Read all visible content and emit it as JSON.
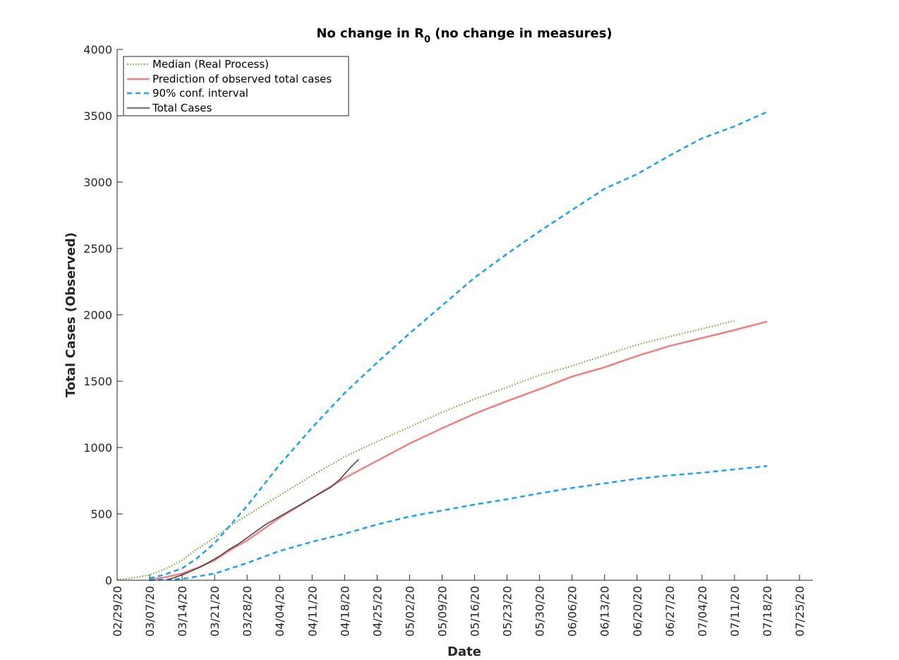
{
  "chart_data": {
    "type": "line",
    "title": "No change in R",
    "title_subscript": "0",
    "title_suffix": " (no change in measures)",
    "xlabel": "Date",
    "ylabel": "Total Cases (Observed)",
    "x_ticks": [
      "02/29/20",
      "03/07/20",
      "03/14/20",
      "03/21/20",
      "03/28/20",
      "04/04/20",
      "04/11/20",
      "04/18/20",
      "04/25/20",
      "05/02/20",
      "05/09/20",
      "05/16/20",
      "05/23/20",
      "05/30/20",
      "06/06/20",
      "06/13/20",
      "06/20/20",
      "06/27/20",
      "07/04/20",
      "07/11/20",
      "07/18/20",
      "07/25/20"
    ],
    "y_ticks": [
      0,
      500,
      1000,
      1500,
      2000,
      2500,
      3000,
      3500,
      4000
    ],
    "xlim": [
      "2020-02-29",
      "2020-07-25"
    ],
    "ylim": [
      0,
      4000
    ],
    "grid": false,
    "legend_position": "top-left",
    "series": [
      {
        "name": "Median (Real Process)",
        "color": "#77AC30",
        "style": "dotted",
        "x": [
          "2020-02-29",
          "2020-03-03",
          "2020-03-07",
          "2020-03-10",
          "2020-03-14",
          "2020-03-17",
          "2020-03-21",
          "2020-03-24",
          "2020-03-28",
          "2020-04-04",
          "2020-04-11",
          "2020-04-18",
          "2020-04-25",
          "2020-05-02",
          "2020-05-09",
          "2020-05-16",
          "2020-05-23",
          "2020-05-30",
          "2020-06-06",
          "2020-06-13",
          "2020-06-20",
          "2020-06-27",
          "2020-07-04",
          "2020-07-11"
        ],
        "y": [
          5,
          15,
          40,
          80,
          150,
          230,
          320,
          400,
          490,
          640,
          790,
          930,
          1045,
          1155,
          1265,
          1365,
          1455,
          1545,
          1615,
          1695,
          1775,
          1835,
          1895,
          1955
        ]
      },
      {
        "name": "Prediction of observed total cases",
        "color": "#F08080",
        "style": "solid",
        "x": [
          "2020-03-07",
          "2020-03-10",
          "2020-03-14",
          "2020-03-17",
          "2020-03-21",
          "2020-03-24",
          "2020-03-28",
          "2020-04-04",
          "2020-04-11",
          "2020-04-18",
          "2020-04-25",
          "2020-05-02",
          "2020-05-09",
          "2020-05-16",
          "2020-05-23",
          "2020-05-30",
          "2020-06-06",
          "2020-06-13",
          "2020-06-20",
          "2020-06-27",
          "2020-07-04",
          "2020-07-11",
          "2020-07-18"
        ],
        "y": [
          5,
          20,
          50,
          90,
          150,
          220,
          300,
          470,
          620,
          770,
          900,
          1030,
          1145,
          1255,
          1350,
          1440,
          1535,
          1605,
          1690,
          1765,
          1825,
          1885,
          1950
        ]
      },
      {
        "name": "90% conf. interval",
        "color": "#1AA3F0",
        "style": "dashed",
        "x": [
          "2020-03-07",
          "2020-03-10",
          "2020-03-14",
          "2020-03-17",
          "2020-03-21",
          "2020-03-24",
          "2020-03-28",
          "2020-04-04",
          "2020-04-11",
          "2020-04-18",
          "2020-04-25",
          "2020-05-02",
          "2020-05-09",
          "2020-05-16",
          "2020-05-23",
          "2020-05-30",
          "2020-06-06",
          "2020-06-13",
          "2020-06-20",
          "2020-06-27",
          "2020-07-04",
          "2020-07-11",
          "2020-07-18"
        ],
        "y": [
          15,
          40,
          90,
          160,
          280,
          400,
          560,
          870,
          1150,
          1410,
          1640,
          1860,
          2070,
          2280,
          2460,
          2630,
          2790,
          2950,
          3060,
          3200,
          3330,
          3420,
          3530
        ]
      },
      {
        "color": "#1AA3F0",
        "style": "dashed",
        "x": [
          "2020-03-07",
          "2020-03-14",
          "2020-03-21",
          "2020-03-28",
          "2020-04-04",
          "2020-04-11",
          "2020-04-18",
          "2020-04-25",
          "2020-05-02",
          "2020-05-09",
          "2020-05-16",
          "2020-05-23",
          "2020-05-30",
          "2020-06-06",
          "2020-06-13",
          "2020-06-20",
          "2020-06-27",
          "2020-07-04",
          "2020-07-11",
          "2020-07-18"
        ],
        "y": [
          0,
          10,
          50,
          130,
          220,
          290,
          350,
          420,
          480,
          525,
          570,
          610,
          655,
          695,
          730,
          765,
          790,
          810,
          835,
          860
        ]
      },
      {
        "name": "Total Cases",
        "color": "#404040",
        "style": "solid",
        "x": [
          "2020-03-11",
          "2020-03-14",
          "2020-03-16",
          "2020-03-18",
          "2020-03-20",
          "2020-03-22",
          "2020-03-24",
          "2020-03-26",
          "2020-03-28",
          "2020-03-30",
          "2020-04-01",
          "2020-04-03",
          "2020-04-05",
          "2020-04-07",
          "2020-04-09",
          "2020-04-11",
          "2020-04-13",
          "2020-04-15",
          "2020-04-17",
          "2020-04-19",
          "2020-04-21"
        ],
        "y": [
          5,
          40,
          70,
          100,
          140,
          180,
          230,
          270,
          320,
          370,
          420,
          460,
          500,
          540,
          580,
          620,
          660,
          700,
          760,
          840,
          910
        ]
      }
    ]
  }
}
